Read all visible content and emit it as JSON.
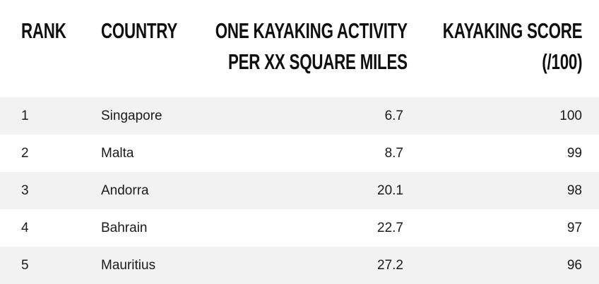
{
  "table": {
    "headers": {
      "rank": "RANK",
      "country": "COUNTRY",
      "activity_line1": "ONE KAYAKING ACTIVITY",
      "activity_line2": "PER XX SQUARE MILES",
      "score_line1": "KAYAKING SCORE",
      "score_line2": "(/100)"
    },
    "rows": [
      {
        "rank": "1",
        "country": "Singapore",
        "activity": "6.7",
        "score": "100"
      },
      {
        "rank": "2",
        "country": "Malta",
        "activity": "8.7",
        "score": "99"
      },
      {
        "rank": "3",
        "country": "Andorra",
        "activity": "20.1",
        "score": "98"
      },
      {
        "rank": "4",
        "country": "Bahrain",
        "activity": "22.7",
        "score": "97"
      },
      {
        "rank": "5",
        "country": "Mauritius",
        "activity": "27.2",
        "score": "96"
      }
    ]
  }
}
